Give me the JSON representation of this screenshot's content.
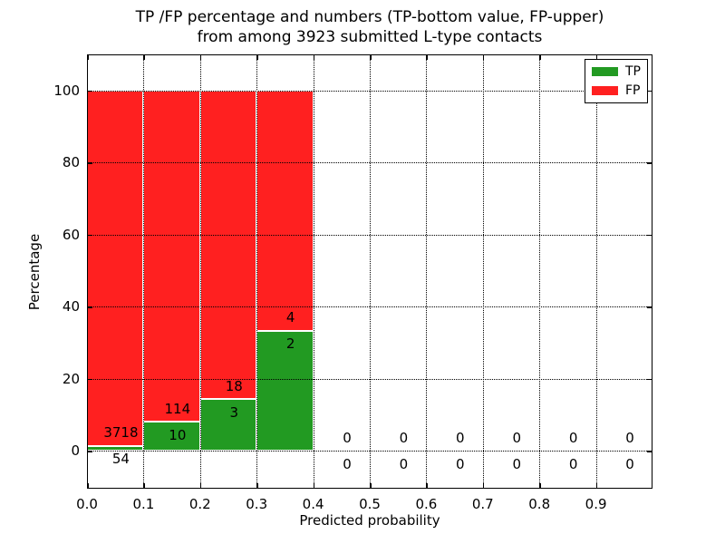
{
  "figure": {
    "title_line1": "TP /FP percentage and numbers (TP-bottom value, FP-upper)",
    "title_line2": "from among 3923 submitted L-type contacts"
  },
  "chart_data": {
    "type": "bar",
    "stacked": true,
    "normalized_to_percent": true,
    "title": "TP /FP percentage and numbers (TP-bottom value, FP-upper)\nfrom among 3923 submitted L-type contacts",
    "xlabel": "Predicted probability",
    "ylabel": "Percentage",
    "xlim": [
      0.0,
      1.0
    ],
    "ylim": [
      -10.5,
      110
    ],
    "grid": "dotted",
    "legend_position": "upper right",
    "bin_width": 0.1,
    "total_contacts": 3923,
    "series": [
      {
        "name": "TP",
        "color": "#229a22"
      },
      {
        "name": "FP",
        "color": "#ff2020"
      }
    ],
    "bins": [
      {
        "x_start": 0.0,
        "tp": 54,
        "fp": 3718,
        "tp_pct": 1.4,
        "fp_pct": 98.6
      },
      {
        "x_start": 0.1,
        "tp": 10,
        "fp": 114,
        "tp_pct": 8.1,
        "fp_pct": 91.9
      },
      {
        "x_start": 0.2,
        "tp": 3,
        "fp": 18,
        "tp_pct": 14.3,
        "fp_pct": 85.7
      },
      {
        "x_start": 0.3,
        "tp": 2,
        "fp": 4,
        "tp_pct": 33.3,
        "fp_pct": 66.7
      },
      {
        "x_start": 0.4,
        "tp": 0,
        "fp": 0,
        "tp_pct": 0,
        "fp_pct": 0
      },
      {
        "x_start": 0.5,
        "tp": 0,
        "fp": 0,
        "tp_pct": 0,
        "fp_pct": 0
      },
      {
        "x_start": 0.6,
        "tp": 0,
        "fp": 0,
        "tp_pct": 0,
        "fp_pct": 0
      },
      {
        "x_start": 0.7,
        "tp": 0,
        "fp": 0,
        "tp_pct": 0,
        "fp_pct": 0
      },
      {
        "x_start": 0.8,
        "tp": 0,
        "fp": 0,
        "tp_pct": 0,
        "fp_pct": 0
      },
      {
        "x_start": 0.9,
        "tp": 0,
        "fp": 0,
        "tp_pct": 0,
        "fp_pct": 0
      }
    ],
    "yticks": [
      0,
      20,
      40,
      60,
      80,
      100
    ],
    "xticks": [
      "0.0",
      "0.1",
      "0.2",
      "0.3",
      "0.4",
      "0.5",
      "0.6",
      "0.7",
      "0.8",
      "0.9"
    ]
  }
}
